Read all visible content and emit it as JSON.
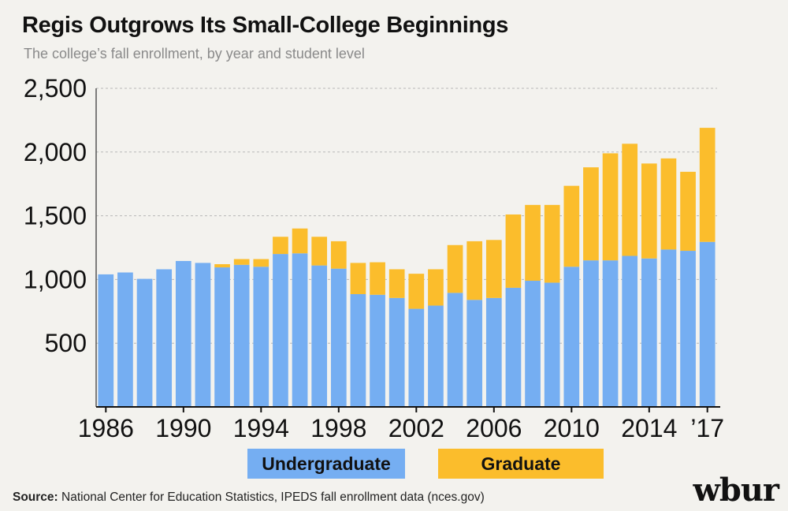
{
  "colors": {
    "undergraduate": "#75aef2",
    "graduate": "#fbbd2c",
    "gridline": "#b8b8b8",
    "background": "#f3f2ee"
  },
  "source": {
    "label": "Source:",
    "text": "National Center for Education Statistics, IPEDS fall enrollment data (nces.gov)"
  },
  "logo": {
    "text": "wbur"
  },
  "chart_data": {
    "type": "bar",
    "stacked": true,
    "title": "Regis Outgrows Its Small-College Beginnings",
    "subtitle": "The college’s fall enrollment, by year and student level",
    "xlabel": "",
    "ylabel": "",
    "ylim": [
      0,
      2500
    ],
    "yticks": [
      500,
      1000,
      1500,
      2000,
      2500
    ],
    "ytick_labels": [
      "500",
      "1,000",
      "1,500",
      "2,000",
      "2,500"
    ],
    "grid": "horizontal dashed",
    "categories": [
      1986,
      1987,
      1988,
      1989,
      1990,
      1991,
      1992,
      1993,
      1994,
      1995,
      1996,
      1997,
      1998,
      1999,
      2000,
      2001,
      2002,
      2003,
      2004,
      2005,
      2006,
      2007,
      2008,
      2009,
      2010,
      2011,
      2012,
      2013,
      2014,
      2015,
      2016,
      2017
    ],
    "xtick_years": [
      1986,
      1990,
      1994,
      1998,
      2002,
      2006,
      2010,
      2014,
      2017
    ],
    "xtick_labels": [
      "1986",
      "1990",
      "1994",
      "1998",
      "2002",
      "2006",
      "2010",
      "2014",
      "’17"
    ],
    "series": [
      {
        "name": "Undergraduate",
        "values": [
          1040,
          1055,
          1005,
          1080,
          1145,
          1130,
          1095,
          1115,
          1100,
          1200,
          1205,
          1110,
          1085,
          885,
          880,
          855,
          770,
          795,
          895,
          840,
          855,
          935,
          990,
          975,
          1100,
          1150,
          1150,
          1185,
          1165,
          1235,
          1225,
          1295
        ]
      },
      {
        "name": "Graduate",
        "values": [
          0,
          0,
          0,
          0,
          0,
          0,
          25,
          45,
          60,
          135,
          195,
          225,
          215,
          245,
          255,
          225,
          275,
          285,
          375,
          460,
          455,
          575,
          595,
          610,
          635,
          730,
          840,
          880,
          745,
          715,
          620,
          895
        ]
      }
    ],
    "legend": [
      "Undergraduate",
      "Graduate"
    ],
    "legend_position": "bottom-center"
  }
}
